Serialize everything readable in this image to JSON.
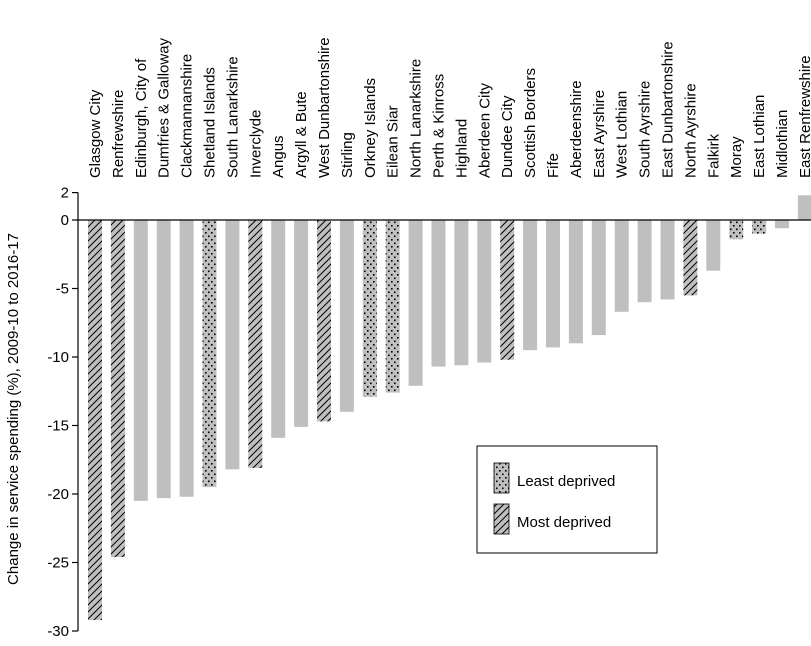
{
  "chart_data": {
    "type": "bar",
    "ylabel": "Change in service spending (%), 2009-10 to 2016-17",
    "ylim": [
      -30,
      2
    ],
    "yticks": [
      2,
      0,
      -5,
      -10,
      -15,
      -20,
      -25,
      -30
    ],
    "grid": false,
    "legend_position": "lower-right",
    "legend": [
      {
        "key": "least",
        "label": "Least deprived",
        "pattern": "dots"
      },
      {
        "key": "most",
        "label": "Most deprived",
        "pattern": "hatch"
      }
    ],
    "colors": {
      "bar": "#bfbfbf",
      "axis": "#000000",
      "pattern_mark": "#000000"
    },
    "bars": [
      {
        "name": "Glasgow City",
        "value": -29.2,
        "group": "most"
      },
      {
        "name": "Renfrewshire",
        "value": -24.6,
        "group": "most"
      },
      {
        "name": "Edinburgh, City of",
        "value": -20.5,
        "group": ""
      },
      {
        "name": "Dumfries & Galloway",
        "value": -20.3,
        "group": ""
      },
      {
        "name": "Clackmannanshire",
        "value": -20.2,
        "group": ""
      },
      {
        "name": "Shetland Islands",
        "value": -19.5,
        "group": "least"
      },
      {
        "name": "South Lanarkshire",
        "value": -18.2,
        "group": ""
      },
      {
        "name": "Inverclyde",
        "value": -18.1,
        "group": "most"
      },
      {
        "name": "Angus",
        "value": -15.9,
        "group": ""
      },
      {
        "name": "Argyll & Bute",
        "value": -15.1,
        "group": ""
      },
      {
        "name": "West Dunbartonshire",
        "value": -14.7,
        "group": "most"
      },
      {
        "name": "Stirling",
        "value": -14.0,
        "group": ""
      },
      {
        "name": "Orkney Islands",
        "value": -12.9,
        "group": "least"
      },
      {
        "name": "Eilean Siar",
        "value": -12.6,
        "group": "least"
      },
      {
        "name": "North Lanarkshire",
        "value": -12.1,
        "group": ""
      },
      {
        "name": "Perth & Kinross",
        "value": -10.7,
        "group": ""
      },
      {
        "name": "Highland",
        "value": -10.6,
        "group": ""
      },
      {
        "name": "Aberdeen City",
        "value": -10.4,
        "group": ""
      },
      {
        "name": "Dundee City",
        "value": -10.2,
        "group": "most"
      },
      {
        "name": "Scottish Borders",
        "value": -9.5,
        "group": ""
      },
      {
        "name": "Fife",
        "value": -9.3,
        "group": ""
      },
      {
        "name": "Aberdeenshire",
        "value": -9.0,
        "group": ""
      },
      {
        "name": "East Ayrshire",
        "value": -8.4,
        "group": ""
      },
      {
        "name": "West Lothian",
        "value": -6.7,
        "group": ""
      },
      {
        "name": "South Ayrshire",
        "value": -6.0,
        "group": ""
      },
      {
        "name": "East Dunbartonshire",
        "value": -5.8,
        "group": ""
      },
      {
        "name": "North Ayrshire",
        "value": -5.5,
        "group": "most"
      },
      {
        "name": "Falkirk",
        "value": -3.7,
        "group": ""
      },
      {
        "name": "Moray",
        "value": -1.4,
        "group": "least"
      },
      {
        "name": "East Lothian",
        "value": -1.0,
        "group": "least"
      },
      {
        "name": "Midlothian",
        "value": -0.6,
        "group": ""
      },
      {
        "name": "East Renfrewshire",
        "value": 1.8,
        "group": ""
      }
    ]
  }
}
